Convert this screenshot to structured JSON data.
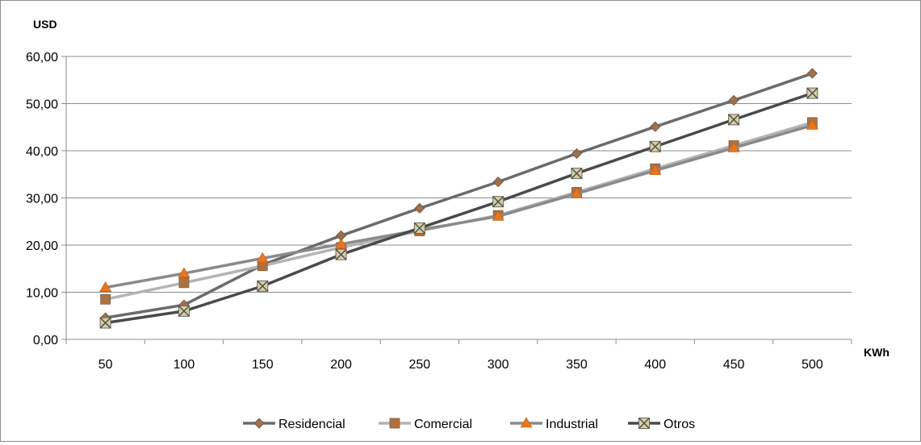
{
  "chart_data": {
    "type": "line",
    "ylabel": "USD",
    "xlabel": "KWh",
    "ylim": [
      0,
      60
    ],
    "ytick_labels": [
      "0,00",
      "10,00",
      "20,00",
      "30,00",
      "40,00",
      "50,00",
      "60,00"
    ],
    "categories": [
      "50",
      "100",
      "150",
      "200",
      "250",
      "300",
      "350",
      "400",
      "450",
      "500"
    ],
    "grid": true,
    "legend_position": "bottom",
    "series": [
      {
        "name": "Residencial",
        "color": "#6b6b6b",
        "marker": "diamond",
        "marker_color": "#a0704a",
        "values": [
          4.6,
          7.3,
          15.8,
          22.0,
          27.8,
          33.4,
          39.4,
          45.1,
          50.7,
          56.4
        ]
      },
      {
        "name": "Comercial",
        "color": "#b4b4b4",
        "marker": "square",
        "marker_color": "#b0703e",
        "values": [
          8.5,
          12.0,
          15.6,
          19.5,
          23.0,
          26.3,
          31.2,
          36.2,
          41.1,
          46.0
        ]
      },
      {
        "name": "Industrial",
        "color": "#8a8a8a",
        "marker": "triangle",
        "marker_color": "#e8761e",
        "values": [
          11.0,
          14.0,
          17.2,
          20.2,
          23.2,
          26.1,
          30.9,
          35.8,
          40.6,
          45.4
        ]
      },
      {
        "name": "Otros",
        "color": "#4a4a4a",
        "marker": "x-square",
        "marker_color": "#d6cda6",
        "values": [
          3.5,
          6.0,
          11.3,
          18.0,
          23.6,
          29.2,
          35.2,
          40.9,
          46.6,
          52.2
        ]
      }
    ]
  }
}
